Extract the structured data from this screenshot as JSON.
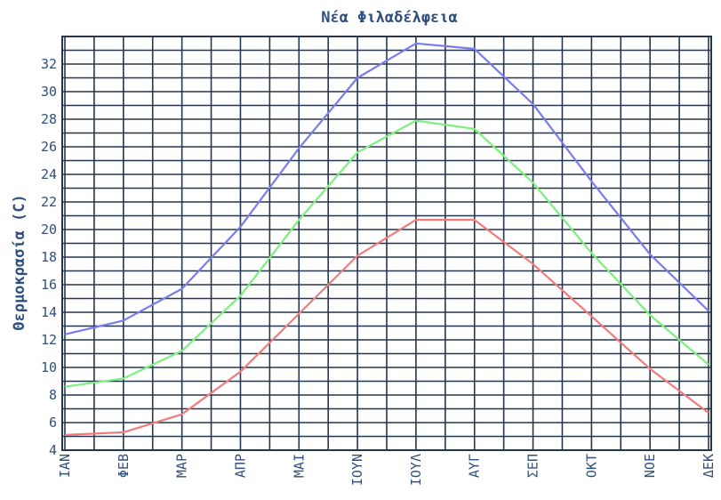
{
  "chart_data": {
    "type": "line",
    "title": "Νέα Φιλαδέλφεια",
    "xlabel": "",
    "ylabel": "Θερμοκρασία (C)",
    "categories": [
      "ΙΑΝ",
      "ΦΕΒ",
      "ΜΑΡ",
      "ΑΠΡ",
      "ΜΑΙ",
      "ΙΟΥΝ",
      "ΙΟΥΛ",
      "ΑΥΓ",
      "ΣΕΠ",
      "ΟΚΤ",
      "ΝΟΕ",
      "ΔΕΚ"
    ],
    "ylim": [
      4,
      34
    ],
    "yticks": [
      4,
      6,
      8,
      10,
      12,
      14,
      16,
      18,
      20,
      22,
      24,
      26,
      28,
      30,
      32
    ],
    "grid": true,
    "series": [
      {
        "color": "#7b7bf0",
        "values": [
          12.4,
          13.4,
          15.7,
          20.2,
          25.9,
          31.0,
          33.5,
          33.1,
          29.1,
          23.5,
          18.2,
          14.1
        ]
      },
      {
        "color": "#7cf07c",
        "values": [
          8.6,
          9.2,
          11.2,
          15.2,
          20.7,
          25.6,
          27.9,
          27.3,
          23.4,
          18.3,
          13.8,
          10.2
        ]
      },
      {
        "color": "#f07c7c",
        "values": [
          5.1,
          5.3,
          6.6,
          9.7,
          13.9,
          18.1,
          20.7,
          20.7,
          17.5,
          13.7,
          9.9,
          6.7
        ]
      }
    ]
  }
}
